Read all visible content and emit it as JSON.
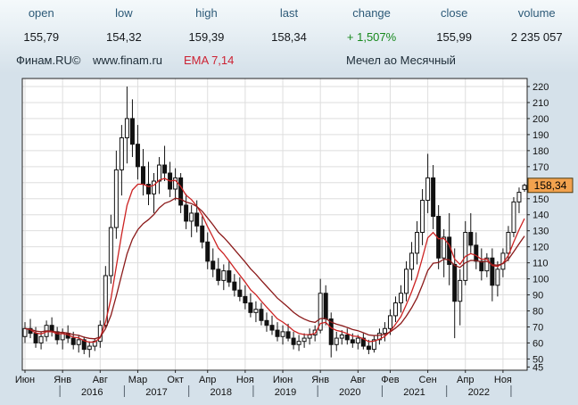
{
  "header": {
    "columns": [
      {
        "label": "open",
        "value": "155,79"
      },
      {
        "label": "low",
        "value": "154,32"
      },
      {
        "label": "high",
        "value": "159,39"
      },
      {
        "label": "last",
        "value": "158,34"
      },
      {
        "label": "change",
        "value": "+ 1,507%"
      },
      {
        "label": "close",
        "value": "155,99"
      },
      {
        "label": "volume",
        "value": "2 235 057"
      }
    ]
  },
  "styles": {
    "change": "color:#17891d",
    "indicator": "color:#cc2233"
  },
  "subheader": {
    "brand": "Финам.RU©",
    "site": "www.finam.ru",
    "indicator": "EMA 7,14",
    "title": "Мечел ао Месячный"
  },
  "price_tag": {
    "label": "158,34",
    "price": 158.34
  },
  "colors": {
    "grid": "#dedede",
    "border": "#222222",
    "text": "#111111",
    "plot_bg": "#ffffff",
    "candle_up": "#ffffff",
    "candle_down": "#111111",
    "candle_stroke": "#111111",
    "ema7": "#cc2222",
    "ema14": "#8b1a1a",
    "tag_bg": "#f2a24e",
    "tag_border": "#4d3a10",
    "change_up": "#17891d",
    "indicator_red": "#cc2233",
    "header_label": "#2d5a78",
    "axis_sep": "#55616c"
  },
  "chart_data": {
    "type": "candlestick",
    "title": "Мечел ао Месячный",
    "timeframe": "Месячный",
    "indicator": "EMA 7,14",
    "ylim": [
      45,
      222
    ],
    "y_ticks": [
      220,
      210,
      200,
      190,
      180,
      170,
      160,
      150,
      140,
      130,
      120,
      110,
      100,
      90,
      80,
      70,
      60,
      50,
      45
    ],
    "x_labels": [
      {
        "m": "Июн",
        "i": 0
      },
      {
        "m": "Янв",
        "i": 7
      },
      {
        "m": "Авг",
        "i": 14
      },
      {
        "m": "Мар",
        "i": 21
      },
      {
        "m": "Окт",
        "i": 28
      },
      {
        "m": "Апр",
        "i": 34
      },
      {
        "m": "Ноя",
        "i": 41
      },
      {
        "m": "Июн",
        "i": 48
      },
      {
        "m": "Янв",
        "i": 55
      },
      {
        "m": "Авг",
        "i": 62
      },
      {
        "m": "Фев",
        "i": 68
      },
      {
        "m": "Сен",
        "i": 75
      },
      {
        "m": "Апр",
        "i": 82
      },
      {
        "m": "Ноя",
        "i": 89
      }
    ],
    "years": [
      {
        "y": "2016",
        "start": 7,
        "end": 19
      },
      {
        "y": "2017",
        "start": 19,
        "end": 31
      },
      {
        "y": "2018",
        "start": 31,
        "end": 43
      },
      {
        "y": "2019",
        "start": 43,
        "end": 55
      },
      {
        "y": "2020",
        "start": 55,
        "end": 67
      },
      {
        "y": "2021",
        "start": 67,
        "end": 79
      },
      {
        "y": "2022",
        "start": 79,
        "end": 91
      }
    ],
    "year_boundaries": [
      7,
      19,
      31,
      43,
      55,
      67,
      79,
      91
    ],
    "candles": [
      [
        "2015-06",
        64,
        73,
        60,
        69
      ],
      [
        "2015-07",
        69,
        75,
        63,
        66
      ],
      [
        "2015-08",
        66,
        70,
        57,
        60
      ],
      [
        "2015-09",
        60,
        67,
        56,
        64
      ],
      [
        "2015-10",
        64,
        74,
        61,
        71
      ],
      [
        "2015-11",
        71,
        76,
        64,
        67
      ],
      [
        "2015-12",
        67,
        70,
        59,
        62
      ],
      [
        "2016-01",
        62,
        69,
        56,
        66
      ],
      [
        "2016-02",
        66,
        71,
        60,
        63
      ],
      [
        "2016-03",
        63,
        67,
        56,
        59
      ],
      [
        "2016-04",
        59,
        65,
        54,
        62
      ],
      [
        "2016-05",
        62,
        64,
        53,
        56
      ],
      [
        "2016-06",
        56,
        61,
        51,
        58
      ],
      [
        "2016-07",
        58,
        63,
        55,
        61
      ],
      [
        "2016-08",
        61,
        74,
        57,
        71
      ],
      [
        "2016-09",
        71,
        108,
        69,
        102
      ],
      [
        "2016-10",
        102,
        140,
        97,
        132
      ],
      [
        "2016-11",
        132,
        180,
        125,
        168
      ],
      [
        "2016-12",
        168,
        196,
        152,
        188
      ],
      [
        "2017-01",
        188,
        220,
        172,
        200
      ],
      [
        "2017-02",
        200,
        212,
        176,
        184
      ],
      [
        "2017-03",
        184,
        196,
        162,
        170
      ],
      [
        "2017-04",
        170,
        181,
        152,
        159
      ],
      [
        "2017-05",
        159,
        173,
        146,
        153
      ],
      [
        "2017-06",
        153,
        166,
        141,
        161
      ],
      [
        "2017-07",
        161,
        176,
        153,
        171
      ],
      [
        "2017-08",
        171,
        183,
        161,
        166
      ],
      [
        "2017-09",
        166,
        173,
        151,
        156
      ],
      [
        "2017-10",
        156,
        169,
        149,
        163
      ],
      [
        "2017-11",
        163,
        166,
        141,
        146
      ],
      [
        "2017-12",
        146,
        153,
        131,
        136
      ],
      [
        "2018-01",
        136,
        146,
        126,
        141
      ],
      [
        "2018-02",
        141,
        149,
        129,
        133
      ],
      [
        "2018-03",
        133,
        139,
        119,
        123
      ],
      [
        "2018-04",
        123,
        129,
        106,
        111
      ],
      [
        "2018-05",
        111,
        119,
        101,
        106
      ],
      [
        "2018-06",
        106,
        113,
        96,
        99
      ],
      [
        "2018-07",
        99,
        109,
        93,
        105
      ],
      [
        "2018-08",
        105,
        111,
        95,
        98
      ],
      [
        "2018-09",
        98,
        103,
        89,
        93
      ],
      [
        "2018-10",
        93,
        101,
        86,
        89
      ],
      [
        "2018-11",
        89,
        96,
        81,
        85
      ],
      [
        "2018-12",
        85,
        91,
        76,
        79
      ],
      [
        "2019-01",
        79,
        86,
        73,
        81
      ],
      [
        "2019-02",
        81,
        85,
        71,
        74
      ],
      [
        "2019-03",
        74,
        79,
        67,
        71
      ],
      [
        "2019-04",
        71,
        77,
        65,
        68
      ],
      [
        "2019-05",
        68,
        73,
        61,
        64
      ],
      [
        "2019-06",
        64,
        71,
        59,
        67
      ],
      [
        "2019-07",
        67,
        72,
        61,
        63
      ],
      [
        "2019-08",
        63,
        67,
        56,
        59
      ],
      [
        "2019-09",
        59,
        65,
        55,
        61
      ],
      [
        "2019-10",
        61,
        66,
        57,
        63
      ],
      [
        "2019-11",
        63,
        69,
        59,
        65
      ],
      [
        "2019-12",
        65,
        71,
        61,
        68
      ],
      [
        "2020-01",
        68,
        100,
        66,
        91
      ],
      [
        "2020-02",
        91,
        96,
        71,
        75
      ],
      [
        "2020-03",
        75,
        79,
        51,
        59
      ],
      [
        "2020-04",
        59,
        67,
        55,
        63
      ],
      [
        "2020-05",
        63,
        68,
        59,
        65
      ],
      [
        "2020-06",
        65,
        69,
        59,
        62
      ],
      [
        "2020-07",
        62,
        66,
        57,
        60
      ],
      [
        "2020-08",
        60,
        65,
        56,
        63
      ],
      [
        "2020-09",
        63,
        66,
        56,
        58
      ],
      [
        "2020-10",
        58,
        62,
        53,
        56
      ],
      [
        "2020-11",
        56,
        65,
        54,
        62
      ],
      [
        "2020-12",
        62,
        69,
        59,
        66
      ],
      [
        "2021-01",
        66,
        73,
        61,
        69
      ],
      [
        "2021-02",
        69,
        81,
        65,
        77
      ],
      [
        "2021-03",
        77,
        89,
        73,
        85
      ],
      [
        "2021-04",
        85,
        96,
        79,
        91
      ],
      [
        "2021-05",
        91,
        111,
        86,
        106
      ],
      [
        "2021-06",
        106,
        123,
        99,
        116
      ],
      [
        "2021-07",
        116,
        136,
        109,
        129
      ],
      [
        "2021-08",
        129,
        156,
        121,
        149
      ],
      [
        "2021-09",
        149,
        178,
        141,
        163
      ],
      [
        "2021-10",
        163,
        171,
        131,
        139
      ],
      [
        "2021-11",
        139,
        146,
        106,
        113
      ],
      [
        "2021-12",
        113,
        131,
        101,
        126
      ],
      [
        "2022-01",
        126,
        141,
        96,
        109
      ],
      [
        "2022-02",
        109,
        119,
        63,
        86
      ],
      [
        "2022-03",
        86,
        106,
        71,
        99
      ],
      [
        "2022-04",
        99,
        136,
        96,
        129
      ],
      [
        "2022-05",
        129,
        141,
        116,
        121
      ],
      [
        "2022-06",
        121,
        129,
        106,
        111
      ],
      [
        "2022-07",
        111,
        119,
        99,
        105
      ],
      [
        "2022-08",
        105,
        116,
        101,
        113
      ],
      [
        "2022-09",
        113,
        119,
        86,
        96
      ],
      [
        "2022-10",
        96,
        111,
        89,
        106
      ],
      [
        "2022-11",
        106,
        119,
        101,
        116
      ],
      [
        "2022-12",
        116,
        133,
        111,
        129
      ],
      [
        "2023-01",
        129,
        151,
        126,
        148
      ],
      [
        "2023-02",
        148,
        157,
        141,
        154
      ],
      [
        "2023-03",
        155.79,
        159.39,
        154.32,
        158.34
      ]
    ]
  }
}
